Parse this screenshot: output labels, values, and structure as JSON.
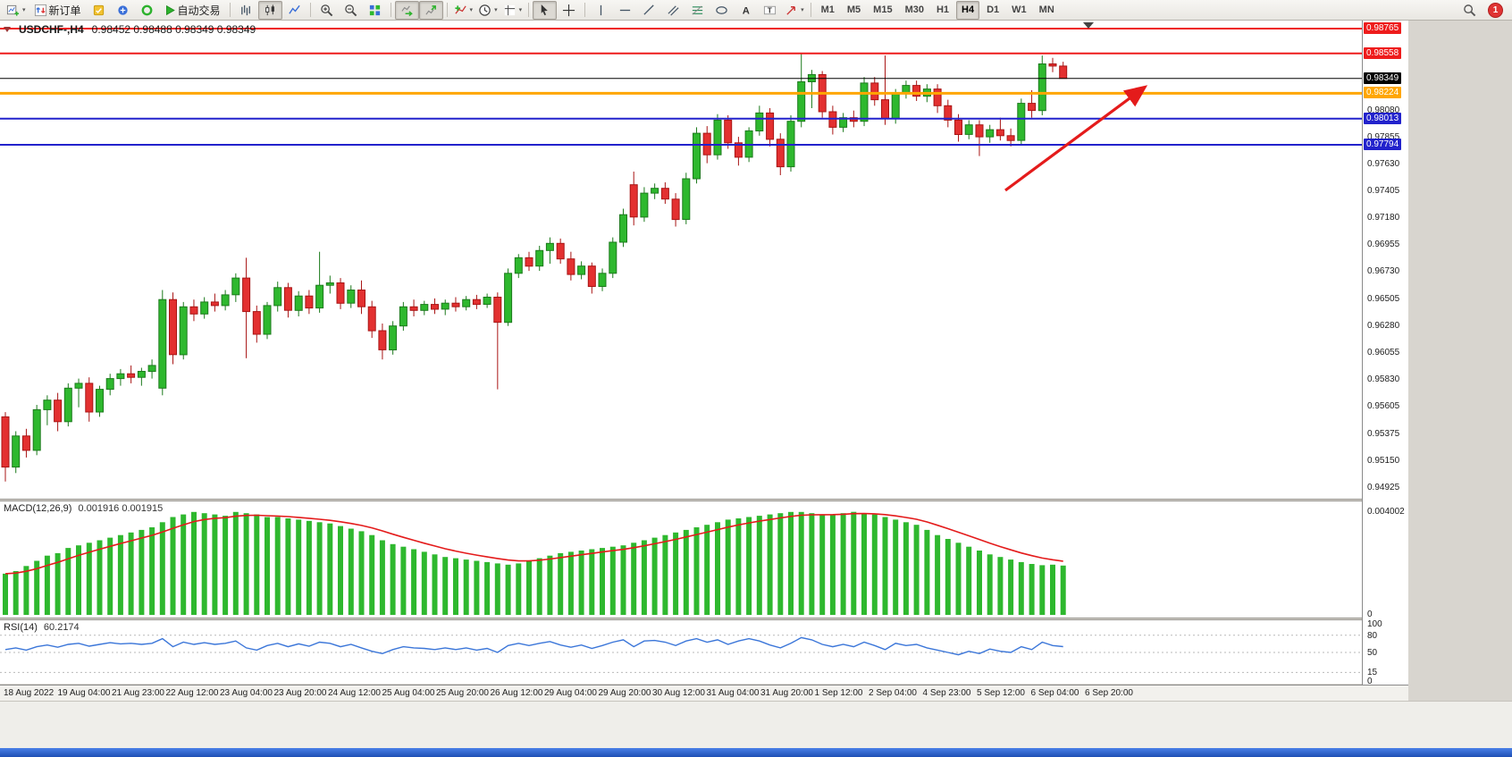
{
  "toolbar": {
    "new_order_label": "新订单",
    "autotrading_label": "自动交易",
    "timeframes": [
      "M1",
      "M5",
      "M15",
      "M30",
      "H1",
      "H4",
      "D1",
      "W1",
      "MN"
    ],
    "active_timeframe": "H4",
    "notification_count": "1"
  },
  "chart_data": [
    {
      "type": "candlestick",
      "symbol": "USDCHF-",
      "timeframe": "H4",
      "title": "USDCHF-,H4",
      "ohlc_text": "0.98452 0.98488 0.98349 0.98349",
      "y_axis": {
        "max": 0.98832,
        "min": 0.94836,
        "ticks": [
          "0.98080",
          "0.97855",
          "0.97630",
          "0.97405",
          "0.97180",
          "0.96955",
          "0.96730",
          "0.96505",
          "0.96280",
          "0.96055",
          "0.95830",
          "0.95605",
          "0.95375",
          "0.95150",
          "0.94925"
        ]
      },
      "levels": [
        {
          "price": 0.98765,
          "label": "0.98765",
          "color": "#ee1c1c",
          "width": 2
        },
        {
          "price": 0.98558,
          "label": "0.98558",
          "color": "#ee1c1c",
          "width": 2
        },
        {
          "price": 0.98224,
          "label": "0.98224",
          "color": "#ffa600",
          "width": 3
        },
        {
          "price": 0.98013,
          "label": "0.98013",
          "color": "#2222cc",
          "width": 2
        },
        {
          "price": 0.97794,
          "label": "0.97794",
          "color": "#2222cc",
          "width": 2
        }
      ],
      "current_price": {
        "value": 0.98349,
        "label": "0.98349",
        "color": "#000000"
      },
      "up_color": "#2eb82e",
      "down_color": "#e33030",
      "annotation_arrow": {
        "x_frac_start": 0.738,
        "price_start": 0.9741,
        "x_frac_end": 0.839,
        "price_end": 0.98264,
        "color": "#e41b1b"
      },
      "x_labels": [
        "18 Aug 2022",
        "19 Aug 04:00",
        "21 Aug 23:00",
        "22 Aug 12:00",
        "23 Aug 04:00",
        "23 Aug 20:00",
        "24 Aug 12:00",
        "25 Aug 04:00",
        "25 Aug 20:00",
        "26 Aug 12:00",
        "29 Aug 04:00",
        "29 Aug 20:00",
        "30 Aug 12:00",
        "31 Aug 04:00",
        "31 Aug 20:00",
        "1 Sep 12:00",
        "2 Sep 04:00",
        "4 Sep 23:00",
        "5 Sep 12:00",
        "6 Sep 04:00",
        "6 Sep 20:00"
      ],
      "candles": [
        [
          0.9552,
          0.9556,
          0.9498,
          0.951
        ],
        [
          0.951,
          0.954,
          0.9505,
          0.9536
        ],
        [
          0.9536,
          0.9542,
          0.9518,
          0.9524
        ],
        [
          0.9524,
          0.9562,
          0.952,
          0.9558
        ],
        [
          0.9558,
          0.957,
          0.9545,
          0.9566
        ],
        [
          0.9566,
          0.9572,
          0.954,
          0.9548
        ],
        [
          0.9548,
          0.958,
          0.9544,
          0.9576
        ],
        [
          0.9576,
          0.9584,
          0.956,
          0.958
        ],
        [
          0.958,
          0.9585,
          0.9548,
          0.9556
        ],
        [
          0.9556,
          0.9578,
          0.9552,
          0.9575
        ],
        [
          0.9575,
          0.9588,
          0.957,
          0.9584
        ],
        [
          0.9584,
          0.9592,
          0.9578,
          0.9588
        ],
        [
          0.9588,
          0.9595,
          0.958,
          0.9585
        ],
        [
          0.9585,
          0.9593,
          0.9578,
          0.959
        ],
        [
          0.959,
          0.96,
          0.9584,
          0.9595
        ],
        [
          0.9576,
          0.9658,
          0.957,
          0.965
        ],
        [
          0.965,
          0.9656,
          0.9596,
          0.9604
        ],
        [
          0.9604,
          0.9648,
          0.96,
          0.9644
        ],
        [
          0.9644,
          0.965,
          0.9632,
          0.9638
        ],
        [
          0.9638,
          0.9652,
          0.9634,
          0.9648
        ],
        [
          0.9648,
          0.9655,
          0.964,
          0.9645
        ],
        [
          0.9645,
          0.9658,
          0.9641,
          0.9654
        ],
        [
          0.9654,
          0.9672,
          0.9648,
          0.9668
        ],
        [
          0.9668,
          0.9685,
          0.9601,
          0.964
        ],
        [
          0.964,
          0.9645,
          0.9614,
          0.9621
        ],
        [
          0.9621,
          0.9648,
          0.9617,
          0.9645
        ],
        [
          0.9645,
          0.9665,
          0.964,
          0.966
        ],
        [
          0.966,
          0.9664,
          0.9635,
          0.9641
        ],
        [
          0.9641,
          0.9657,
          0.9636,
          0.9653
        ],
        [
          0.9653,
          0.9658,
          0.9638,
          0.9643
        ],
        [
          0.9643,
          0.969,
          0.9639,
          0.9662
        ],
        [
          0.9662,
          0.967,
          0.9655,
          0.9664
        ],
        [
          0.9664,
          0.9668,
          0.9642,
          0.9647
        ],
        [
          0.9647,
          0.9662,
          0.9643,
          0.9658
        ],
        [
          0.9658,
          0.9666,
          0.9638,
          0.9644
        ],
        [
          0.9644,
          0.9649,
          0.9618,
          0.9624
        ],
        [
          0.9624,
          0.963,
          0.96,
          0.9608
        ],
        [
          0.9608,
          0.9632,
          0.9604,
          0.9628
        ],
        [
          0.9628,
          0.9648,
          0.9624,
          0.9644
        ],
        [
          0.9644,
          0.965,
          0.9636,
          0.9641
        ],
        [
          0.9641,
          0.9649,
          0.9637,
          0.9646
        ],
        [
          0.9646,
          0.9651,
          0.9638,
          0.9642
        ],
        [
          0.9642,
          0.965,
          0.9637,
          0.9647
        ],
        [
          0.9647,
          0.9652,
          0.964,
          0.9644
        ],
        [
          0.9644,
          0.9653,
          0.9641,
          0.965
        ],
        [
          0.965,
          0.9654,
          0.9642,
          0.9646
        ],
        [
          0.9646,
          0.9655,
          0.9643,
          0.9652
        ],
        [
          0.9652,
          0.9656,
          0.9575,
          0.9631
        ],
        [
          0.9631,
          0.9676,
          0.9628,
          0.9672
        ],
        [
          0.9672,
          0.9688,
          0.9668,
          0.9685
        ],
        [
          0.9685,
          0.969,
          0.9674,
          0.9678
        ],
        [
          0.9678,
          0.9695,
          0.9674,
          0.9691
        ],
        [
          0.9691,
          0.9702,
          0.968,
          0.9697
        ],
        [
          0.9697,
          0.9701,
          0.968,
          0.9684
        ],
        [
          0.9684,
          0.969,
          0.9666,
          0.9671
        ],
        [
          0.9671,
          0.9682,
          0.9667,
          0.9678
        ],
        [
          0.9678,
          0.9681,
          0.9655,
          0.9661
        ],
        [
          0.9661,
          0.9676,
          0.9657,
          0.9672
        ],
        [
          0.9672,
          0.9702,
          0.9668,
          0.9698
        ],
        [
          0.9698,
          0.9726,
          0.9694,
          0.9721
        ],
        [
          0.9746,
          0.9757,
          0.9712,
          0.9719
        ],
        [
          0.9719,
          0.9744,
          0.9715,
          0.9739
        ],
        [
          0.9739,
          0.9747,
          0.9734,
          0.9743
        ],
        [
          0.9743,
          0.9748,
          0.973,
          0.9734
        ],
        [
          0.9734,
          0.9739,
          0.9711,
          0.9717
        ],
        [
          0.9717,
          0.9756,
          0.9713,
          0.9751
        ],
        [
          0.9751,
          0.9794,
          0.9747,
          0.9789
        ],
        [
          0.9789,
          0.9795,
          0.9764,
          0.9771
        ],
        [
          0.9771,
          0.9805,
          0.9767,
          0.98
        ],
        [
          0.98,
          0.9804,
          0.9776,
          0.9781
        ],
        [
          0.9781,
          0.9786,
          0.9762,
          0.9769
        ],
        [
          0.9769,
          0.9794,
          0.9765,
          0.9791
        ],
        [
          0.9791,
          0.9812,
          0.9787,
          0.9806
        ],
        [
          0.9806,
          0.981,
          0.9778,
          0.9784
        ],
        [
          0.9784,
          0.9789,
          0.9754,
          0.9761
        ],
        [
          0.9761,
          0.9804,
          0.9757,
          0.9799
        ],
        [
          0.9799,
          0.9856,
          0.9794,
          0.9832
        ],
        [
          0.9832,
          0.9842,
          0.981,
          0.9838
        ],
        [
          0.9838,
          0.9841,
          0.9802,
          0.9807
        ],
        [
          0.9807,
          0.9812,
          0.9788,
          0.9794
        ],
        [
          0.9794,
          0.9806,
          0.979,
          0.9802
        ],
        [
          0.9802,
          0.9808,
          0.9794,
          0.9799
        ],
        [
          0.9799,
          0.9836,
          0.9795,
          0.9831
        ],
        [
          0.9831,
          0.9836,
          0.9812,
          0.9817
        ],
        [
          0.9817,
          0.9854,
          0.9796,
          0.9801
        ],
        [
          0.9801,
          0.9826,
          0.9797,
          0.9822
        ],
        [
          0.9822,
          0.9833,
          0.9818,
          0.9829
        ],
        [
          0.9829,
          0.9833,
          0.9816,
          0.982
        ],
        [
          0.982,
          0.983,
          0.9815,
          0.9826
        ],
        [
          0.9826,
          0.983,
          0.9806,
          0.9812
        ],
        [
          0.9812,
          0.9817,
          0.9794,
          0.98
        ],
        [
          0.98,
          0.9805,
          0.9782,
          0.9788
        ],
        [
          0.9788,
          0.98,
          0.9784,
          0.9796
        ],
        [
          0.9796,
          0.98,
          0.977,
          0.9786
        ],
        [
          0.9786,
          0.9796,
          0.9781,
          0.9792
        ],
        [
          0.9792,
          0.9802,
          0.9783,
          0.9787
        ],
        [
          0.9787,
          0.9793,
          0.9778,
          0.9783
        ],
        [
          0.9783,
          0.9818,
          0.9779,
          0.9814
        ],
        [
          0.9814,
          0.9825,
          0.9802,
          0.9808
        ],
        [
          0.9808,
          0.9854,
          0.9804,
          0.9847
        ],
        [
          0.9847,
          0.9852,
          0.984,
          0.98452
        ],
        [
          0.98452,
          0.98488,
          0.98349,
          0.98349
        ]
      ]
    },
    {
      "type": "bar",
      "name": "MACD",
      "label": "MACD(12,26,9)",
      "values_text": "0.001916 0.001915",
      "bar_color": "#2eb82e",
      "signal_color": "#e41b1b",
      "axis": {
        "max": 0.0042,
        "ticks": [
          {
            "v": 0.004002,
            "label": "0.004002"
          },
          {
            "v": 0,
            "label": "0"
          }
        ]
      },
      "histogram": [
        0.0016,
        0.0017,
        0.0019,
        0.0021,
        0.0023,
        0.0024,
        0.0026,
        0.0027,
        0.0028,
        0.0029,
        0.003,
        0.0031,
        0.0032,
        0.0033,
        0.0034,
        0.0036,
        0.0038,
        0.0039,
        0.004,
        0.00395,
        0.0039,
        0.00385,
        0.004,
        0.00395,
        0.0039,
        0.0038,
        0.0038,
        0.00375,
        0.0037,
        0.00365,
        0.0036,
        0.00355,
        0.00345,
        0.00335,
        0.00325,
        0.0031,
        0.0029,
        0.00275,
        0.00265,
        0.00255,
        0.00245,
        0.00235,
        0.00225,
        0.0022,
        0.00215,
        0.0021,
        0.00205,
        0.002,
        0.00195,
        0.002,
        0.0021,
        0.0022,
        0.0023,
        0.0024,
        0.00245,
        0.0025,
        0.00255,
        0.0026,
        0.00265,
        0.0027,
        0.0028,
        0.0029,
        0.003,
        0.0031,
        0.0032,
        0.0033,
        0.0034,
        0.0035,
        0.0036,
        0.0037,
        0.00375,
        0.0038,
        0.00385,
        0.0039,
        0.00395,
        0.004,
        0.004,
        0.00395,
        0.0039,
        0.0039,
        0.00395,
        0.004002,
        0.00395,
        0.0039,
        0.0038,
        0.0037,
        0.0036,
        0.0035,
        0.0033,
        0.0031,
        0.00295,
        0.0028,
        0.00265,
        0.0025,
        0.00235,
        0.00225,
        0.00215,
        0.00205,
        0.00198,
        0.00193,
        0.00195,
        0.001916
      ]
    },
    {
      "type": "line",
      "name": "RSI",
      "label": "RSI(14)",
      "value_text": "60.2174",
      "line_color": "#3b76d9",
      "axis_ticks": [
        100,
        80,
        50,
        15,
        0
      ],
      "dashed_levels": [
        80,
        50,
        15
      ],
      "values": [
        55,
        58,
        54,
        60,
        63,
        59,
        64,
        66,
        61,
        64,
        67,
        65,
        66,
        64,
        66,
        74,
        60,
        68,
        64,
        67,
        64,
        66,
        70,
        58,
        54,
        62,
        66,
        60,
        65,
        61,
        68,
        66,
        60,
        64,
        58,
        52,
        48,
        55,
        60,
        58,
        57,
        55,
        58,
        55,
        58,
        54,
        57,
        50,
        62,
        66,
        62,
        66,
        69,
        63,
        59,
        63,
        57,
        62,
        68,
        72,
        60,
        70,
        71,
        68,
        62,
        70,
        74,
        68,
        72,
        64,
        70,
        74,
        70,
        63,
        58,
        66,
        76,
        72,
        64,
        60,
        64,
        60,
        68,
        62,
        55,
        66,
        62,
        64,
        58,
        54,
        50,
        46,
        52,
        48,
        56,
        52,
        50,
        60,
        55,
        68,
        62,
        60.2
      ]
    }
  ]
}
